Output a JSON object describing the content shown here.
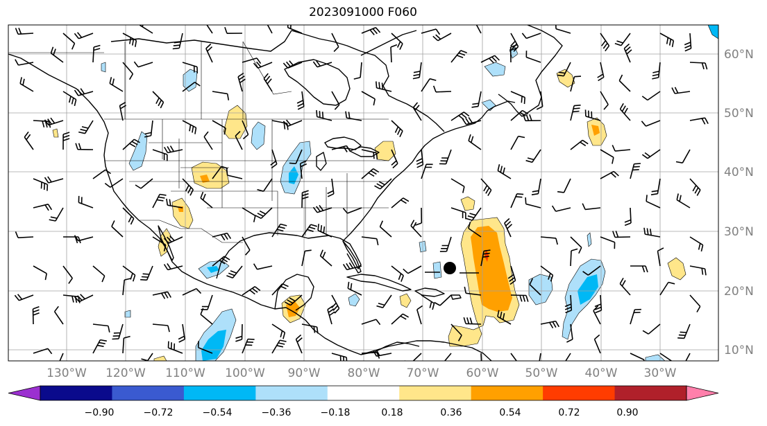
{
  "title": "2023091000 F060",
  "map": {
    "lon_labels": [
      "130°W",
      "120°W",
      "110°W",
      "100°W",
      "90°W",
      "80°W",
      "70°W",
      "60°W",
      "50°W",
      "40°W",
      "30°W"
    ],
    "lat_labels": [
      "60°N",
      "50°N",
      "40°N",
      "30°N",
      "20°N",
      "10°N"
    ],
    "grid": true,
    "features": [
      "coastlines",
      "country-borders",
      "state-borders",
      "wind-barbs",
      "filled-contours",
      "storm-center-marker"
    ]
  },
  "colorbar": {
    "tick_labels": [
      "−0.90",
      "−0.72",
      "−0.54",
      "−0.36",
      "−0.18",
      "0.18",
      "0.36",
      "0.54",
      "0.72",
      "0.90"
    ],
    "colors": [
      "#9b30d0",
      "#0a0a8c",
      "#3a5ad0",
      "#00b8f5",
      "#aee0fa",
      "#ffffff",
      "#ffe68a",
      "#ffa000",
      "#ff3c00",
      "#b0202a",
      "#ff7fab"
    ],
    "extend": "both"
  }
}
